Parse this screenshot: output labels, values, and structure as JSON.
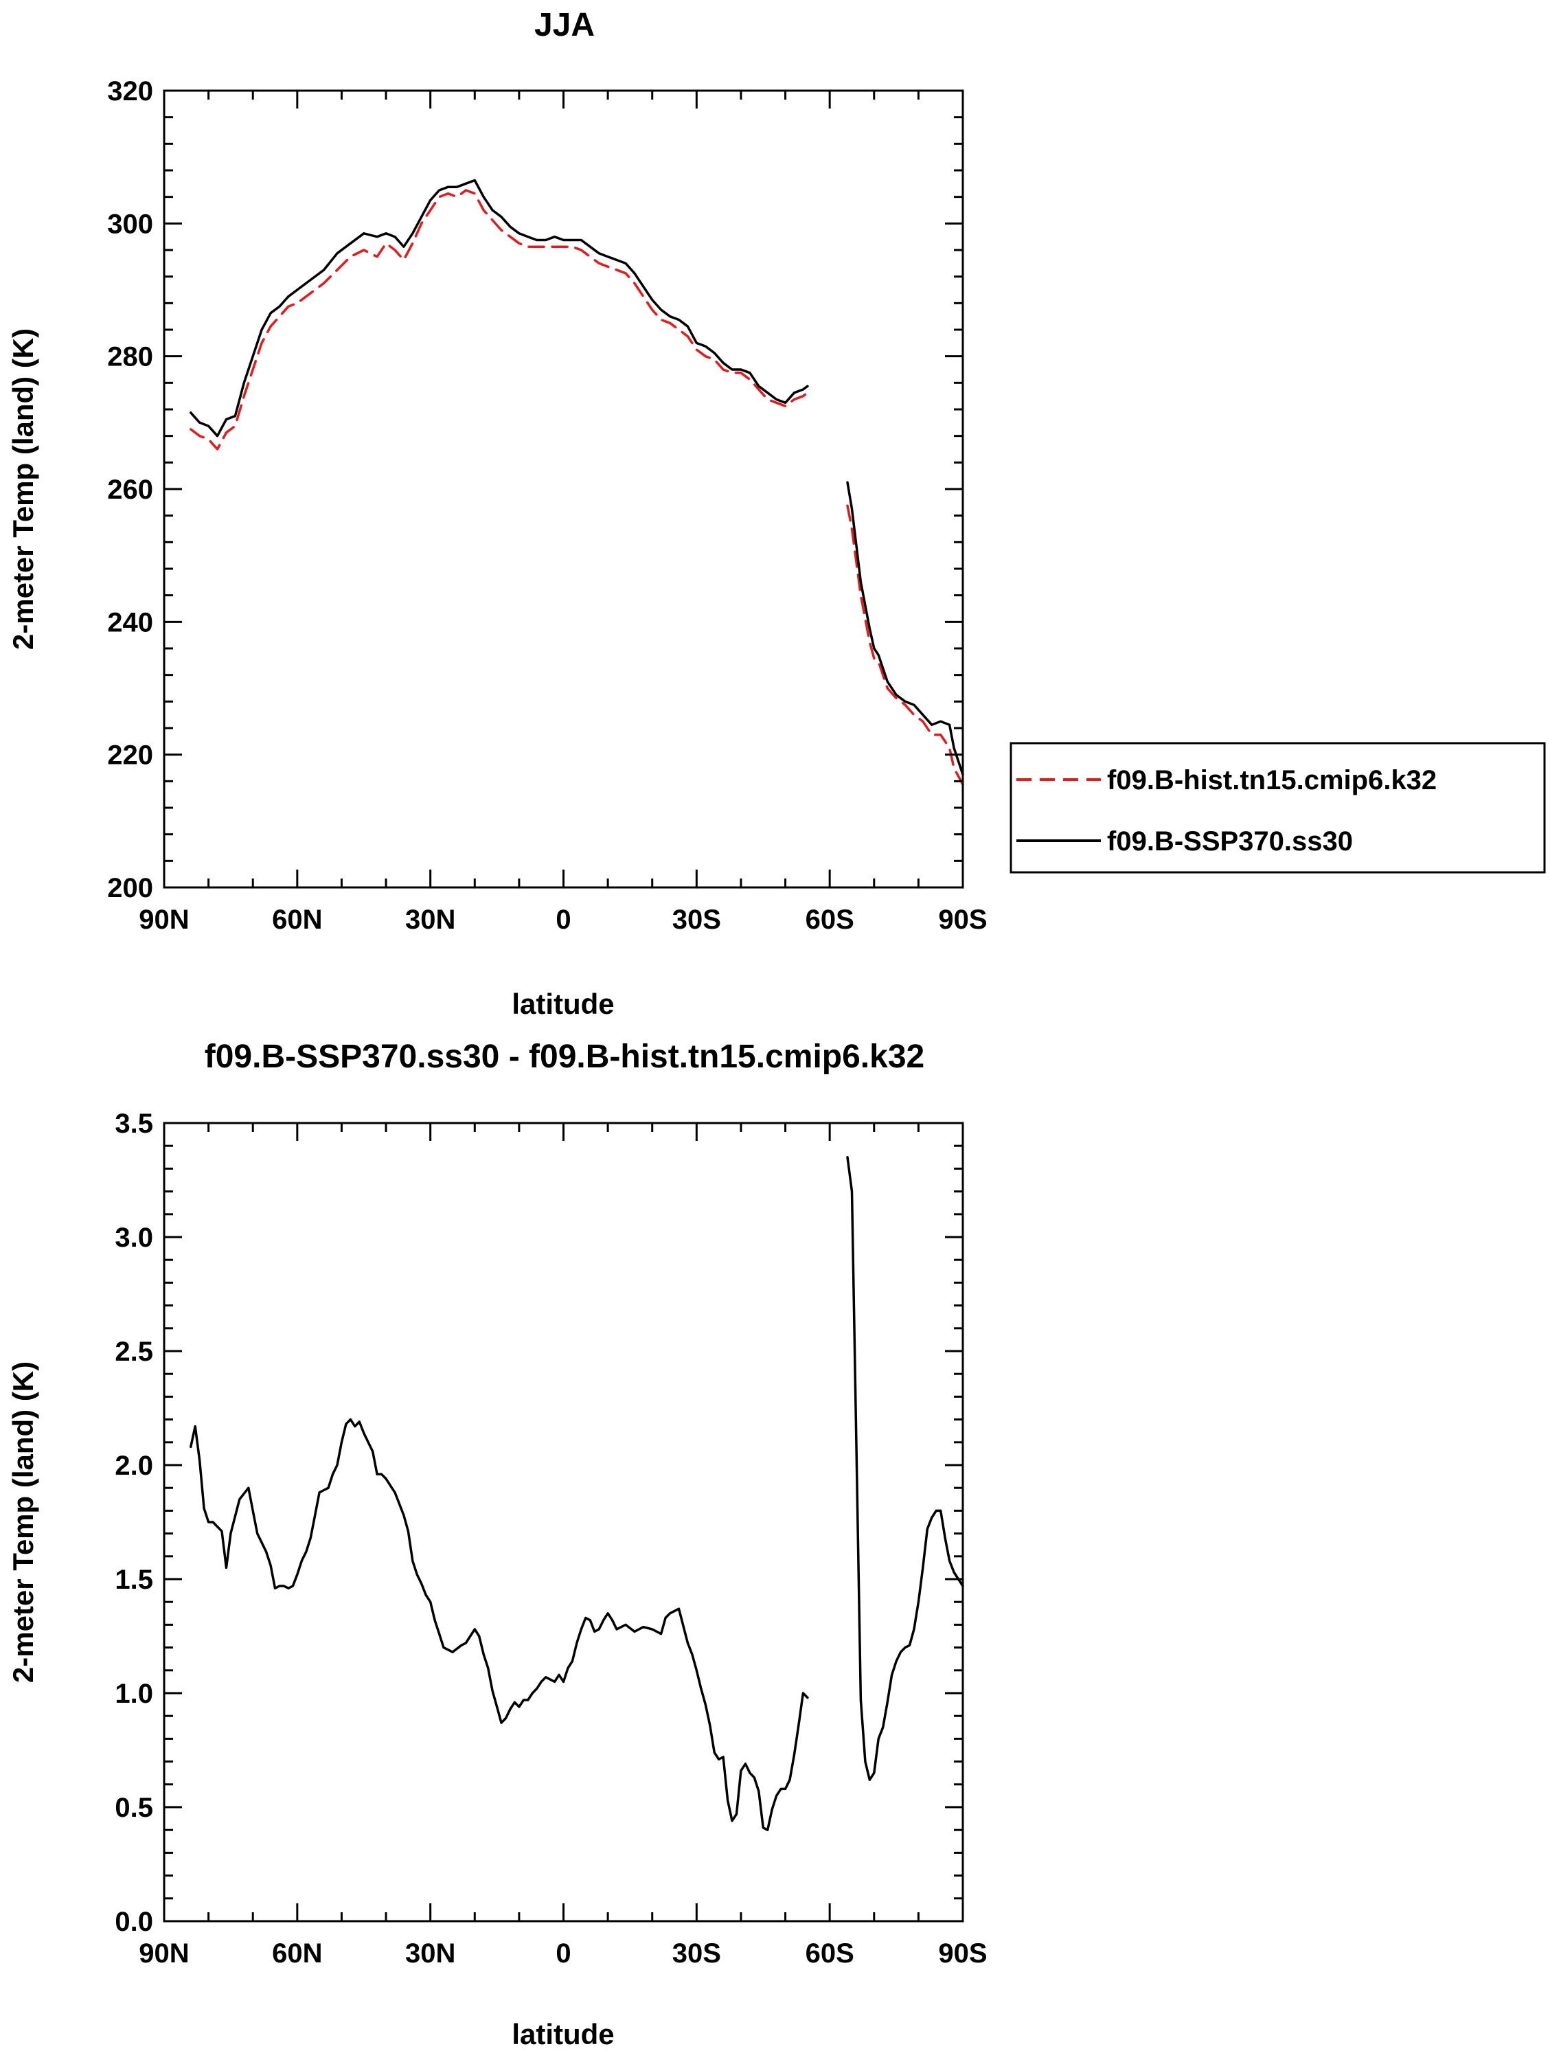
{
  "chart_data": [
    {
      "type": "line",
      "title": "JJA",
      "xlabel": "latitude",
      "ylabel": "2-meter Temp (land) (K)",
      "xlim": [
        90,
        -90
      ],
      "ylim": [
        200,
        320
      ],
      "x_ticks": [
        90,
        60,
        30,
        0,
        -30,
        -60,
        -90
      ],
      "x_tick_labels": [
        "90N",
        "60N",
        "30N",
        "0",
        "30S",
        "60S",
        "90S"
      ],
      "y_ticks": [
        200,
        220,
        240,
        260,
        280,
        300,
        320
      ],
      "y_tick_labels": [
        "200",
        "220",
        "240",
        "260",
        "280",
        "300",
        "320"
      ],
      "grid": false,
      "legend": "outside-right",
      "series": [
        {
          "name": "f09.B-hist.tn15.cmip6.k32",
          "color": "#e41a1c",
          "dash": "dashed",
          "segments": [
            {
              "x": [
                84,
                82,
                80,
                78,
                76,
                74,
                72,
                70,
                68,
                66,
                64,
                62,
                60,
                57,
                54,
                51,
                48,
                45,
                42,
                40,
                38,
                36,
                34,
                32,
                30,
                28,
                26,
                24,
                22,
                20,
                18,
                16,
                14,
                12,
                10,
                8,
                6,
                4,
                2,
                0,
                -2,
                -4,
                -6,
                -8,
                -10,
                -12,
                -14,
                -16,
                -18,
                -20,
                -22,
                -24,
                -26,
                -28,
                -30,
                -32,
                -34,
                -36,
                -38,
                -40,
                -42,
                -44,
                -46,
                -48,
                -50,
                -52,
                -54,
                -55
              ],
              "y": [
                269,
                268,
                267.5,
                266,
                268.5,
                269.5,
                274,
                278,
                282,
                284.5,
                286,
                287.5,
                288,
                289.5,
                291,
                293,
                295,
                296,
                295,
                297,
                296,
                294.5,
                297,
                300,
                302,
                304,
                304.5,
                304,
                305,
                304.5,
                302,
                300.5,
                299,
                298,
                297,
                296.5,
                296.5,
                296.5,
                296.5,
                296.5,
                296.5,
                296,
                295,
                294,
                293.5,
                293,
                292.5,
                291,
                289,
                287,
                285.5,
                285,
                284,
                283,
                281,
                280,
                279.5,
                278,
                277.5,
                277.5,
                276.5,
                275,
                273.5,
                273,
                272.5,
                273.5,
                274,
                274.5
              ]
            },
            {
              "x": [
                -64,
                -65,
                -67,
                -69,
                -70,
                -71,
                -73,
                -75,
                -77,
                -79,
                -81,
                -83,
                -85,
                -87,
                -88,
                -90
              ],
              "y": [
                257.5,
                254,
                244,
                237,
                234.5,
                234,
                230,
                228.5,
                227.5,
                226,
                225,
                223,
                223,
                221,
                218,
                215.5
              ]
            }
          ]
        },
        {
          "name": "f09.B-SSP370.ss30",
          "color": "#000000",
          "dash": "solid",
          "segments": [
            {
              "x": [
                84,
                82,
                80,
                78,
                76,
                74,
                72,
                70,
                68,
                66,
                64,
                62,
                60,
                57,
                54,
                51,
                48,
                45,
                42,
                40,
                38,
                36,
                34,
                32,
                30,
                28,
                26,
                24,
                22,
                20,
                18,
                16,
                14,
                12,
                10,
                8,
                6,
                4,
                2,
                0,
                -2,
                -4,
                -6,
                -8,
                -10,
                -12,
                -14,
                -16,
                -18,
                -20,
                -22,
                -24,
                -26,
                -28,
                -30,
                -32,
                -34,
                -36,
                -38,
                -40,
                -42,
                -44,
                -46,
                -48,
                -50,
                -52,
                -54,
                -55
              ],
              "y": [
                271.5,
                270,
                269.5,
                268,
                270.5,
                271,
                276,
                280,
                284,
                286.5,
                287.5,
                289,
                290,
                291.5,
                293,
                295.5,
                297,
                298.5,
                298,
                298.5,
                298,
                296.5,
                298.5,
                301,
                303.5,
                305,
                305.5,
                305.5,
                306,
                306.5,
                304,
                302,
                301,
                299.5,
                298.5,
                298,
                297.5,
                297.5,
                298,
                297.5,
                297.5,
                297.5,
                296.5,
                295.5,
                295,
                294.5,
                294,
                292.5,
                290.5,
                288.5,
                287,
                286,
                285.5,
                284.5,
                282,
                281.5,
                280.5,
                279,
                278,
                278,
                277.5,
                275.5,
                274.5,
                273.5,
                273,
                274.5,
                275,
                275.5
              ]
            },
            {
              "x": [
                -64,
                -65,
                -67,
                -69,
                -70,
                -71,
                -73,
                -75,
                -77,
                -79,
                -81,
                -83,
                -85,
                -87,
                -88,
                -90
              ],
              "y": [
                261,
                257,
                246,
                239,
                236,
                235,
                231,
                229,
                228,
                227.5,
                226,
                224.5,
                225,
                224.5,
                221,
                217
              ]
            }
          ]
        }
      ]
    },
    {
      "type": "line",
      "title": "f09.B-SSP370.ss30 - f09.B-hist.tn15.cmip6.k32",
      "xlabel": "latitude",
      "ylabel": "2-meter Temp (land) (K)",
      "xlim": [
        90,
        -90
      ],
      "ylim": [
        0,
        3.5
      ],
      "x_ticks": [
        90,
        60,
        30,
        0,
        -30,
        -60,
        -90
      ],
      "x_tick_labels": [
        "90N",
        "60N",
        "30N",
        "0",
        "30S",
        "60S",
        "90S"
      ],
      "y_ticks": [
        0,
        0.5,
        1,
        1.5,
        2,
        2.5,
        3,
        3.5
      ],
      "y_tick_labels": [
        "0.0",
        "0.5",
        "1.0",
        "1.5",
        "2.0",
        "2.5",
        "3.0",
        "3.5"
      ],
      "grid": false,
      "series": [
        {
          "color": "#000000",
          "dash": "solid",
          "segments": [
            {
              "x": [
                84,
                83,
                82,
                81,
                80,
                79,
                78,
                77,
                76,
                75,
                73,
                71,
                70,
                69,
                67,
                66,
                65,
                64,
                63,
                62,
                61,
                60,
                59,
                58,
                57,
                56,
                55,
                54,
                53,
                52,
                51,
                50,
                49,
                48,
                47,
                46,
                45,
                44,
                43,
                42,
                41,
                40,
                39,
                38,
                36,
                35,
                34,
                33,
                32,
                31,
                30,
                29,
                28,
                27,
                25,
                23,
                22,
                21,
                20,
                19,
                18,
                17,
                16,
                15,
                14,
                13,
                12,
                11,
                10,
                9,
                8,
                7,
                6,
                5,
                4,
                3,
                2,
                1,
                0,
                -1,
                -2,
                -3,
                -4,
                -5,
                -6,
                -7,
                -8,
                -9,
                -10,
                -11,
                -12,
                -14,
                -16,
                -18,
                -20,
                -22,
                -23,
                -24,
                -26,
                -28,
                -29,
                -30,
                -31,
                -32,
                -33,
                -34,
                -35,
                -36,
                -37,
                -38,
                -39,
                -40,
                -41,
                -42,
                -43,
                -44,
                -45,
                -46,
                -47,
                -48,
                -49,
                -50,
                -51,
                -52,
                -53,
                -54,
                -55
              ],
              "y": [
                2.08,
                2.17,
                2.02,
                1.81,
                1.75,
                1.75,
                1.73,
                1.71,
                1.55,
                1.7,
                1.85,
                1.9,
                1.8,
                1.7,
                1.62,
                1.56,
                1.46,
                1.47,
                1.47,
                1.46,
                1.47,
                1.52,
                1.58,
                1.62,
                1.68,
                1.78,
                1.88,
                1.89,
                1.9,
                1.96,
                2.0,
                2.1,
                2.18,
                2.2,
                2.17,
                2.19,
                2.14,
                2.1,
                2.06,
                1.96,
                1.96,
                1.94,
                1.91,
                1.88,
                1.78,
                1.71,
                1.58,
                1.52,
                1.48,
                1.43,
                1.4,
                1.32,
                1.26,
                1.2,
                1.18,
                1.21,
                1.22,
                1.25,
                1.28,
                1.25,
                1.17,
                1.11,
                1.01,
                0.94,
                0.87,
                0.89,
                0.93,
                0.96,
                0.94,
                0.97,
                0.97,
                1.0,
                1.02,
                1.05,
                1.07,
                1.06,
                1.05,
                1.08,
                1.05,
                1.11,
                1.14,
                1.22,
                1.28,
                1.33,
                1.32,
                1.27,
                1.28,
                1.32,
                1.35,
                1.32,
                1.28,
                1.3,
                1.27,
                1.29,
                1.28,
                1.26,
                1.33,
                1.35,
                1.37,
                1.22,
                1.17,
                1.1,
                1.02,
                0.95,
                0.86,
                0.74,
                0.71,
                0.72,
                0.53,
                0.44,
                0.47,
                0.66,
                0.69,
                0.65,
                0.63,
                0.57,
                0.41,
                0.4,
                0.49,
                0.55,
                0.58,
                0.58,
                0.62,
                0.73,
                0.86,
                1.0,
                0.98
              ]
            },
            {
              "x": [
                -64,
                -65,
                -66,
                -67,
                -68,
                -69,
                -70,
                -71,
                -72,
                -73,
                -74,
                -75,
                -76,
                -77,
                -78,
                -79,
                -80,
                -81,
                -82,
                -83,
                -84,
                -85,
                -86,
                -87,
                -88,
                -89,
                -90
              ],
              "y": [
                3.35,
                3.2,
                2.1,
                0.97,
                0.7,
                0.62,
                0.65,
                0.8,
                0.85,
                0.96,
                1.08,
                1.14,
                1.18,
                1.2,
                1.21,
                1.28,
                1.4,
                1.55,
                1.72,
                1.77,
                1.8,
                1.8,
                1.68,
                1.58,
                1.53,
                1.5,
                1.47
              ]
            }
          ]
        }
      ]
    }
  ]
}
